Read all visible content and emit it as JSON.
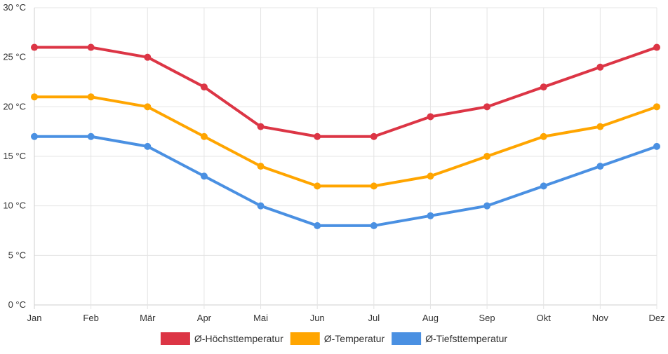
{
  "chart_data": {
    "type": "line",
    "categories": [
      "Jan",
      "Feb",
      "Mär",
      "Apr",
      "Mai",
      "Jun",
      "Jul",
      "Aug",
      "Sep",
      "Okt",
      "Nov",
      "Dez"
    ],
    "ylim": [
      0,
      30
    ],
    "yticks": [
      0,
      5,
      10,
      15,
      20,
      25,
      30
    ],
    "ytick_labels": [
      "0 °C",
      "5 °C",
      "10 °C",
      "15 °C",
      "20 °C",
      "25 °C",
      "30 °C"
    ],
    "grid": true,
    "legend_position": "bottom",
    "series": [
      {
        "name": "Ø-Höchsttemperatur",
        "color": "#dc3545",
        "values": [
          26,
          26,
          25,
          22,
          18,
          17,
          17,
          19,
          20,
          22,
          24,
          26
        ]
      },
      {
        "name": "Ø-Temperatur",
        "color": "#ffa500",
        "values": [
          21,
          21,
          20,
          17,
          14,
          12,
          12,
          13,
          15,
          17,
          18,
          20
        ]
      },
      {
        "name": "Ø-Tiefsttemperatur",
        "color": "#4a90e2",
        "values": [
          17,
          17,
          16,
          13,
          10,
          8,
          8,
          9,
          10,
          12,
          14,
          16
        ]
      }
    ]
  }
}
